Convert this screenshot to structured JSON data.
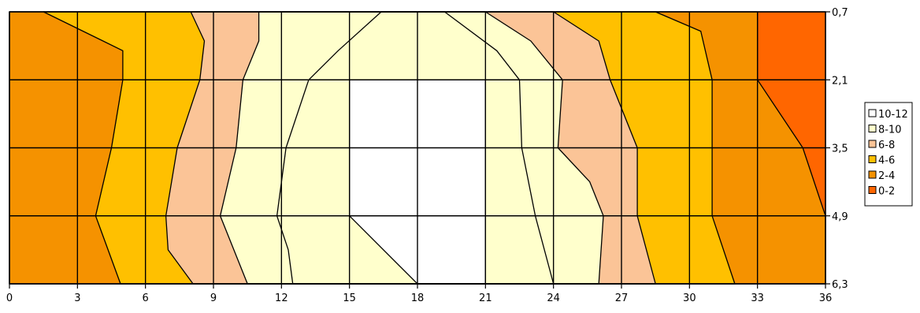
{
  "chart_data": {
    "type": "heatmap",
    "subtype": "filled-contour",
    "title": "",
    "xlabel": "",
    "ylabel": "",
    "x_ticks": [
      "0",
      "3",
      "6",
      "9",
      "12",
      "15",
      "18",
      "21",
      "24",
      "27",
      "30",
      "33",
      "36"
    ],
    "y_ticks": [
      "0,7",
      "2,1",
      "3,5",
      "4,9",
      "6,3"
    ],
    "xlim": [
      0,
      36
    ],
    "ylim": [
      0.7,
      6.3
    ],
    "y_axis_position": "right",
    "y_direction": "top-to-bottom",
    "grid": true,
    "legend_position": "right",
    "legend": [
      {
        "label": "10-12",
        "color": "#ffffff"
      },
      {
        "label": "8-10",
        "color": "#ffffcc"
      },
      {
        "label": "6-8",
        "color": "#fbc497"
      },
      {
        "label": "4-6",
        "color": "#ffc000"
      },
      {
        "label": "2-4",
        "color": "#f59200"
      },
      {
        "label": "0-2",
        "color": "#ff6600"
      }
    ],
    "contour_levels": [
      {
        "level": 2,
        "color": "#f59200",
        "points": [
          [
            0,
            0.7
          ],
          [
            33,
            0.7
          ],
          [
            33,
            2.1
          ],
          [
            35,
            3.5
          ],
          [
            36,
            4.9
          ],
          [
            36,
            6.3
          ],
          [
            0,
            6.3
          ]
        ]
      },
      {
        "level": 4,
        "color": "#ffc000",
        "points": [
          [
            1.5,
            0.7
          ],
          [
            28.5,
            0.7
          ],
          [
            30.5,
            1.1
          ],
          [
            31,
            2.1
          ],
          [
            31,
            3.5
          ],
          [
            31,
            4.9
          ],
          [
            32,
            6.3
          ],
          [
            4.9,
            6.3
          ],
          [
            3.8,
            4.9
          ],
          [
            4.5,
            3.5
          ],
          [
            5,
            2.1
          ],
          [
            5,
            1.5
          ]
        ]
      },
      {
        "level": 6,
        "color": "#fbc497",
        "points": [
          [
            8,
            0.7
          ],
          [
            24,
            0.7
          ],
          [
            26,
            1.3
          ],
          [
            26.5,
            2.1
          ],
          [
            27.7,
            3.5
          ],
          [
            27.7,
            4.9
          ],
          [
            28.5,
            6.3
          ],
          [
            8.1,
            6.3
          ],
          [
            7,
            5.6
          ],
          [
            6.9,
            4.9
          ],
          [
            7.4,
            3.5
          ],
          [
            8.4,
            2.1
          ],
          [
            8.6,
            1.3
          ]
        ]
      },
      {
        "level": 8,
        "color": "#ffffcc",
        "points": [
          [
            11,
            0.7
          ],
          [
            21,
            0.7
          ],
          [
            23,
            1.3
          ],
          [
            24.4,
            2.1
          ],
          [
            24.2,
            3.5
          ],
          [
            25.6,
            4.2
          ],
          [
            26.2,
            4.9
          ],
          [
            26,
            6.3
          ],
          [
            10.5,
            6.3
          ],
          [
            9.3,
            4.9
          ],
          [
            10,
            3.5
          ],
          [
            10.3,
            2.1
          ],
          [
            11,
            1.3
          ]
        ]
      },
      {
        "level": 10,
        "color": "#ffffcc",
        "points": [
          [
            16.4,
            0.7
          ],
          [
            19.2,
            0.7
          ],
          [
            21.5,
            1.5
          ],
          [
            22.5,
            2.1
          ],
          [
            22.6,
            3.5
          ],
          [
            23.2,
            4.9
          ],
          [
            24,
            6.3
          ],
          [
            12.5,
            6.3
          ],
          [
            12.3,
            5.6
          ],
          [
            11.8,
            4.9
          ],
          [
            12.2,
            3.5
          ],
          [
            13.2,
            2.1
          ],
          [
            14.5,
            1.5
          ]
        ]
      },
      {
        "level": 12,
        "color": "#ffffff",
        "points": [
          [
            15,
            2.1
          ],
          [
            21,
            2.1
          ],
          [
            21,
            6.3
          ],
          [
            18,
            6.3
          ],
          [
            15,
            4.9
          ]
        ]
      }
    ]
  }
}
